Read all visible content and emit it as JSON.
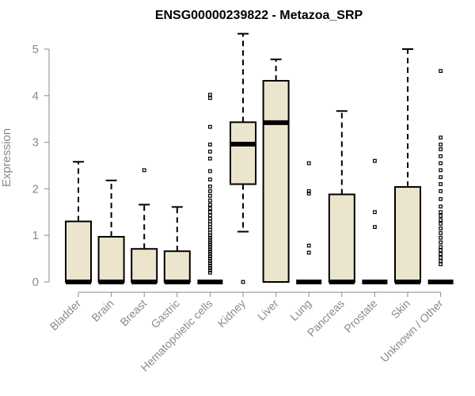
{
  "chart_data": {
    "type": "boxplot",
    "title": "ENSG00000239822 - Metazoa_SRP",
    "xlabel": "",
    "ylabel": "Expression",
    "ylim": [
      0,
      5
    ],
    "yticks": [
      0,
      1,
      2,
      3,
      4,
      5
    ],
    "box_color": "#ece5cd",
    "categories": [
      "Bladder",
      "Brain",
      "Breast",
      "Gastric",
      "Hematopoietic cells",
      "Kidney",
      "Liver",
      "Lung",
      "Pancreas",
      "Prostate",
      "Skin",
      "Unknown / Other"
    ],
    "boxes": [
      {
        "min": 0,
        "q1": 0,
        "median": 0,
        "q3": 1.3,
        "max": 2.58,
        "outliers": []
      },
      {
        "min": 0,
        "q1": 0,
        "median": 0,
        "q3": 0.97,
        "max": 2.18,
        "outliers": []
      },
      {
        "min": 0,
        "q1": 0,
        "median": 0,
        "q3": 0.71,
        "max": 1.66,
        "outliers": [
          2.4
        ]
      },
      {
        "min": 0,
        "q1": 0,
        "median": 0,
        "q3": 0.66,
        "max": 1.61,
        "outliers": []
      },
      {
        "min": 0,
        "q1": 0,
        "median": 0,
        "q3": 0,
        "max": 0,
        "outliers": [
          4.02,
          3.95,
          3.33,
          2.95,
          2.8,
          2.65,
          2.38,
          2.2,
          2.05,
          1.95,
          1.85,
          1.75,
          1.66,
          1.58,
          1.5,
          1.43,
          1.36,
          1.3,
          1.24,
          1.18,
          1.12,
          1.06,
          1.0,
          0.95,
          0.9,
          0.85,
          0.8,
          0.75,
          0.7,
          0.65,
          0.6,
          0.55,
          0.5,
          0.45,
          0.4,
          0.35,
          0.3,
          0.25,
          0.2
        ]
      },
      {
        "min": 1.08,
        "q1": 2.1,
        "median": 2.96,
        "q3": 3.43,
        "max": 5.33,
        "outliers": [
          0
        ]
      },
      {
        "min": 0,
        "q1": 0,
        "median": 3.42,
        "q3": 4.32,
        "max": 4.78,
        "outliers": []
      },
      {
        "min": 0,
        "q1": 0,
        "median": 0,
        "q3": 0,
        "max": 0,
        "outliers": [
          2.55,
          1.95,
          1.9,
          0.78,
          0.63
        ]
      },
      {
        "min": 0,
        "q1": 0,
        "median": 0,
        "q3": 1.88,
        "max": 3.67,
        "outliers": []
      },
      {
        "min": 0,
        "q1": 0,
        "median": 0,
        "q3": 0,
        "max": 0,
        "outliers": [
          2.6,
          1.5,
          1.18
        ]
      },
      {
        "min": 0,
        "q1": 0,
        "median": 0,
        "q3": 2.04,
        "max": 5.0,
        "outliers": []
      },
      {
        "min": 0,
        "q1": 0,
        "median": 0,
        "q3": 0,
        "max": 0,
        "outliers": [
          4.53,
          3.1,
          2.95,
          2.85,
          2.7,
          2.55,
          2.4,
          2.25,
          2.1,
          1.95,
          1.78,
          1.62,
          1.5,
          1.42,
          1.33,
          1.25,
          1.15,
          1.05,
          0.95,
          0.85,
          0.75,
          0.68,
          0.6,
          0.52,
          0.45,
          0.38
        ]
      }
    ]
  }
}
